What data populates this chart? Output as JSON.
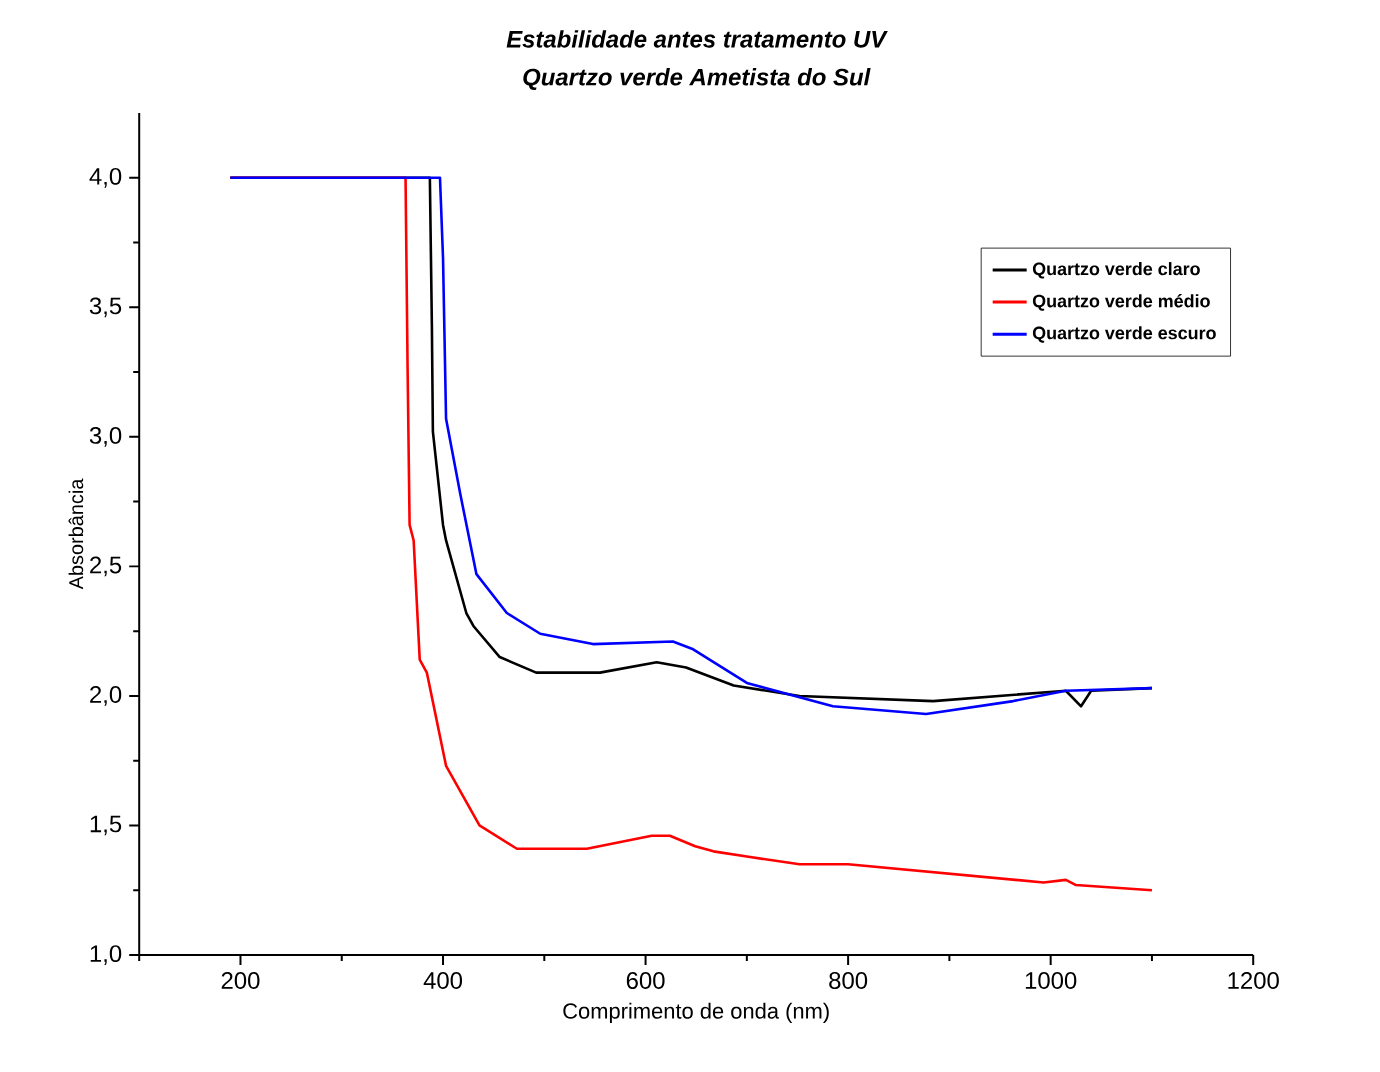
{
  "chart_data": {
    "type": "line",
    "title": "Estabilidade antes tratamento UV",
    "subtitle": "Quartzo verde Ametista do Sul",
    "xlabel": "Comprimento de onda (nm)",
    "ylabel": "Absorbância",
    "xlim": [
      100,
      1200
    ],
    "ylim": [
      1.0,
      4.25
    ],
    "xticks": [
      {
        "value": 100,
        "label": null
      },
      200,
      {
        "value": 300,
        "label": null
      },
      400,
      {
        "value": 500,
        "label": null
      },
      600,
      {
        "value": 700,
        "label": null
      },
      800,
      {
        "value": 900,
        "label": null
      },
      1000,
      {
        "value": 1100,
        "label": null
      },
      1200
    ],
    "yticks": [
      {
        "value": 1.0,
        "label": "1,0"
      },
      {
        "value": 1.25,
        "label": null
      },
      {
        "value": 1.5,
        "label": "1,5"
      },
      {
        "value": 1.75,
        "label": null
      },
      {
        "value": 2.0,
        "label": "2,0"
      },
      {
        "value": 2.25,
        "label": null
      },
      {
        "value": 2.5,
        "label": "2,5"
      },
      {
        "value": 2.75,
        "label": null
      },
      {
        "value": 3.0,
        "label": "3,0"
      },
      {
        "value": 3.25,
        "label": null
      },
      {
        "value": 3.5,
        "label": "3,5"
      },
      {
        "value": 3.75,
        "label": null
      },
      {
        "value": 4.0,
        "label": "4,0"
      }
    ],
    "grid": false,
    "legend": "top right",
    "marker": "none",
    "line_style": "solid",
    "series": [
      {
        "name": "Quartzo verde claro",
        "color": "#000000",
        "x": [
          190,
          387,
          389,
          390,
          400,
          403,
          423,
          430,
          456,
          492,
          555,
          611,
          640,
          687,
          752,
          884,
          1015,
          1030,
          1040,
          1100
        ],
        "values": [
          4.0,
          4.0,
          3.43,
          3.02,
          2.66,
          2.6,
          2.32,
          2.27,
          2.15,
          2.09,
          2.09,
          2.13,
          2.11,
          2.04,
          2.0,
          1.98,
          2.02,
          1.96,
          2.02,
          2.03
        ]
      },
      {
        "name": "Quartzo verde médio",
        "color": "#ff0000",
        "x": [
          190,
          363,
          365,
          367,
          371,
          377,
          384,
          403,
          436,
          473,
          542,
          606,
          624,
          649,
          667,
          700,
          752,
          800,
          993,
          1015,
          1025,
          1100
        ],
        "values": [
          4.0,
          4.0,
          3.27,
          2.66,
          2.6,
          2.14,
          2.09,
          1.73,
          1.5,
          1.41,
          1.41,
          1.46,
          1.46,
          1.42,
          1.4,
          1.38,
          1.35,
          1.35,
          1.28,
          1.29,
          1.27,
          1.25
        ]
      },
      {
        "name": "Quartzo verde escuro",
        "color": "#0000ff",
        "x": [
          190,
          397,
          400,
          403,
          417,
          433,
          463,
          496,
          548,
          627,
          647,
          700,
          785,
          877,
          963,
          1015,
          1100
        ],
        "values": [
          4.0,
          4.0,
          3.69,
          3.07,
          2.78,
          2.47,
          2.32,
          2.24,
          2.2,
          2.21,
          2.18,
          2.05,
          1.96,
          1.93,
          1.98,
          2.02,
          2.03
        ]
      }
    ]
  }
}
